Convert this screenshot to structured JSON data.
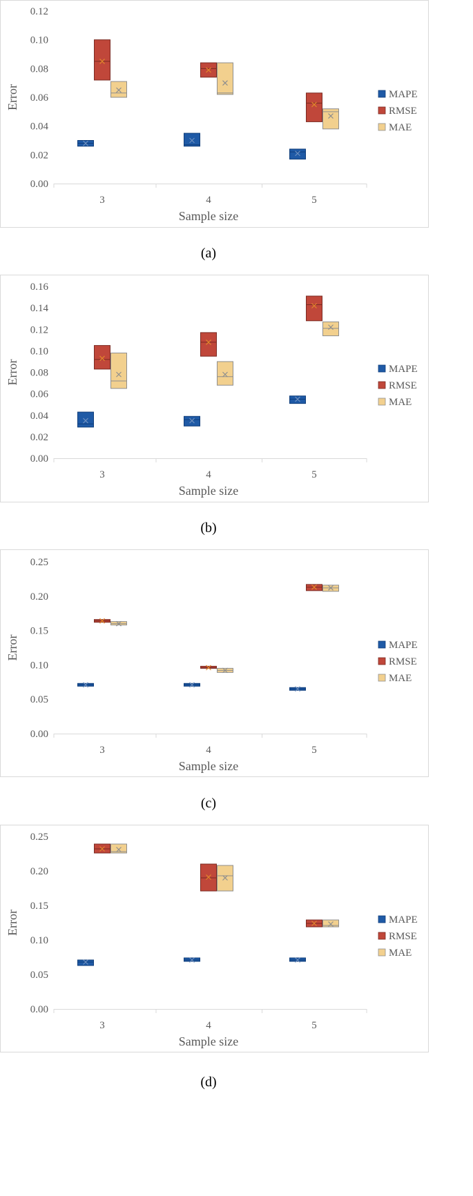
{
  "legend": [
    "MAPE",
    "RMSE",
    "MAE"
  ],
  "colors": {
    "MAPE": "#1f5aa6",
    "RMSE": "#c0473a",
    "MAE": "#f2d08e",
    "MAPE_line": "#0f3d7a",
    "RMSE_line": "#7a2a22",
    "MAE_line": "#8e8e8e",
    "RMSE_mark": "#e2872b"
  },
  "chart_data": [
    {
      "type": "box",
      "caption": "(a)",
      "xlabel": "Sample size",
      "ylabel": "Error",
      "categories": [
        "3",
        "4",
        "5"
      ],
      "ylim": [
        0,
        0.12
      ],
      "yticks": [
        "0.00",
        "0.02",
        "0.04",
        "0.06",
        "0.08",
        "0.10",
        "0.12"
      ],
      "series": [
        {
          "name": "MAPE",
          "boxes": [
            {
              "q1": 0.026,
              "q3": 0.03,
              "median": 0.028,
              "mean": 0.028
            },
            {
              "q1": 0.026,
              "q3": 0.035,
              "median": 0.027,
              "mean": 0.03
            },
            {
              "q1": 0.017,
              "q3": 0.024,
              "median": 0.022,
              "mean": 0.021
            }
          ]
        },
        {
          "name": "RMSE",
          "boxes": [
            {
              "q1": 0.072,
              "q3": 0.1,
              "median": 0.085,
              "mean": 0.085
            },
            {
              "q1": 0.074,
              "q3": 0.084,
              "median": 0.08,
              "mean": 0.079
            },
            {
              "q1": 0.043,
              "q3": 0.063,
              "median": 0.056,
              "mean": 0.055
            }
          ]
        },
        {
          "name": "MAE",
          "boxes": [
            {
              "q1": 0.06,
              "q3": 0.071,
              "median": 0.063,
              "mean": 0.065
            },
            {
              "q1": 0.062,
              "q3": 0.084,
              "median": 0.063,
              "mean": 0.07
            },
            {
              "q1": 0.038,
              "q3": 0.052,
              "median": 0.05,
              "mean": 0.047
            }
          ]
        }
      ]
    },
    {
      "type": "box",
      "caption": "(b)",
      "xlabel": "Sample size",
      "ylabel": "Error",
      "categories": [
        "3",
        "4",
        "5"
      ],
      "ylim": [
        0,
        0.16
      ],
      "yticks": [
        "0.00",
        "0.02",
        "0.04",
        "0.06",
        "0.08",
        "0.10",
        "0.12",
        "0.14",
        "0.16"
      ],
      "series": [
        {
          "name": "MAPE",
          "boxes": [
            {
              "q1": 0.029,
              "q3": 0.043,
              "median": 0.032,
              "mean": 0.035
            },
            {
              "q1": 0.03,
              "q3": 0.039,
              "median": 0.036,
              "mean": 0.035
            },
            {
              "q1": 0.051,
              "q3": 0.058,
              "median": 0.055,
              "mean": 0.055
            }
          ]
        },
        {
          "name": "RMSE",
          "boxes": [
            {
              "q1": 0.083,
              "q3": 0.105,
              "median": 0.092,
              "mean": 0.093
            },
            {
              "q1": 0.095,
              "q3": 0.117,
              "median": 0.108,
              "mean": 0.108
            },
            {
              "q1": 0.128,
              "q3": 0.151,
              "median": 0.143,
              "mean": 0.142
            }
          ]
        },
        {
          "name": "MAE",
          "boxes": [
            {
              "q1": 0.065,
              "q3": 0.098,
              "median": 0.072,
              "mean": 0.078
            },
            {
              "q1": 0.068,
              "q3": 0.09,
              "median": 0.076,
              "mean": 0.078
            },
            {
              "q1": 0.114,
              "q3": 0.127,
              "median": 0.121,
              "mean": 0.122
            }
          ]
        }
      ]
    },
    {
      "type": "box",
      "caption": "(c)",
      "xlabel": "Sample size",
      "ylabel": "Error",
      "categories": [
        "3",
        "4",
        "5"
      ],
      "ylim": [
        0,
        0.25
      ],
      "yticks": [
        "0.00",
        "0.05",
        "0.10",
        "0.15",
        "0.20",
        "0.25"
      ],
      "series": [
        {
          "name": "MAPE",
          "boxes": [
            {
              "q1": 0.069,
              "q3": 0.073,
              "median": 0.071,
              "mean": 0.071
            },
            {
              "q1": 0.069,
              "q3": 0.073,
              "median": 0.071,
              "mean": 0.071
            },
            {
              "q1": 0.063,
              "q3": 0.067,
              "median": 0.065,
              "mean": 0.065
            }
          ]
        },
        {
          "name": "RMSE",
          "boxes": [
            {
              "q1": 0.162,
              "q3": 0.166,
              "median": 0.164,
              "mean": 0.164
            },
            {
              "q1": 0.095,
              "q3": 0.098,
              "median": 0.096,
              "mean": 0.096
            },
            {
              "q1": 0.208,
              "q3": 0.217,
              "median": 0.213,
              "mean": 0.213
            }
          ]
        },
        {
          "name": "MAE",
          "boxes": [
            {
              "q1": 0.158,
              "q3": 0.163,
              "median": 0.16,
              "mean": 0.16
            },
            {
              "q1": 0.089,
              "q3": 0.095,
              "median": 0.092,
              "mean": 0.092
            },
            {
              "q1": 0.207,
              "q3": 0.216,
              "median": 0.212,
              "mean": 0.212
            }
          ]
        }
      ]
    },
    {
      "type": "box",
      "caption": "(d)",
      "xlabel": "Sample size",
      "ylabel": "Error",
      "categories": [
        "3",
        "4",
        "5"
      ],
      "ylim": [
        0,
        0.25
      ],
      "yticks": [
        "0.00",
        "0.05",
        "0.10",
        "0.15",
        "0.20",
        "0.25"
      ],
      "series": [
        {
          "name": "MAPE",
          "boxes": [
            {
              "q1": 0.063,
              "q3": 0.071,
              "median": 0.068,
              "mean": 0.068
            },
            {
              "q1": 0.069,
              "q3": 0.074,
              "median": 0.071,
              "mean": 0.071
            },
            {
              "q1": 0.069,
              "q3": 0.074,
              "median": 0.071,
              "mean": 0.071
            }
          ]
        },
        {
          "name": "RMSE",
          "boxes": [
            {
              "q1": 0.226,
              "q3": 0.239,
              "median": 0.232,
              "mean": 0.232
            },
            {
              "q1": 0.171,
              "q3": 0.21,
              "median": 0.19,
              "mean": 0.191
            },
            {
              "q1": 0.119,
              "q3": 0.129,
              "median": 0.124,
              "mean": 0.124
            }
          ]
        },
        {
          "name": "MAE",
          "boxes": [
            {
              "q1": 0.226,
              "q3": 0.239,
              "median": 0.228,
              "mean": 0.231
            },
            {
              "q1": 0.171,
              "q3": 0.208,
              "median": 0.193,
              "mean": 0.19
            },
            {
              "q1": 0.119,
              "q3": 0.129,
              "median": 0.121,
              "mean": 0.123
            }
          ]
        }
      ]
    }
  ]
}
